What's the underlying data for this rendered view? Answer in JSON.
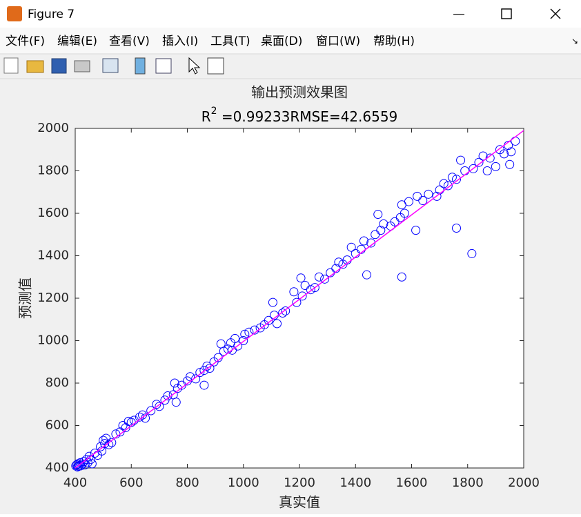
{
  "window": {
    "title": "Figure 7",
    "menu": [
      "文件(F)",
      "编辑(E)",
      "查看(V)",
      "插入(I)",
      "工具(T)",
      "桌面(D)",
      "窗口(W)",
      "帮助(H)"
    ]
  },
  "chart_data": {
    "type": "scatter",
    "title": "输出预测效果图",
    "subtitle": {
      "base": "R",
      "superscript": "2",
      "text": " =0.99233RMSE=42.6559"
    },
    "x_label": "真实值",
    "y_label": "预测值",
    "xlim": [
      400,
      2000
    ],
    "ylim": [
      400,
      2000
    ],
    "xticks": [
      400,
      600,
      800,
      1000,
      1200,
      1400,
      1600,
      1800,
      2000
    ],
    "yticks": [
      400,
      600,
      800,
      1000,
      1200,
      1400,
      1600,
      1800,
      2000
    ],
    "grid": false,
    "series": [
      {
        "type": "scatter",
        "color": "#0000ff",
        "x": [
          402,
          405,
          408,
          410,
          412,
          415,
          418,
          420,
          425,
          430,
          435,
          440,
          445,
          450,
          455,
          460,
          470,
          480,
          490,
          495,
          500,
          505,
          510,
          520,
          530,
          545,
          560,
          570,
          580,
          590,
          600,
          610,
          630,
          640,
          650,
          670,
          690,
          700,
          720,
          730,
          750,
          755,
          765,
          780,
          800,
          810,
          830,
          845,
          860,
          870,
          880,
          895,
          910,
          920,
          930,
          945,
          955,
          960,
          970,
          980,
          1000,
          1005,
          1020,
          1040,
          1060,
          1075,
          1090,
          1110,
          1120,
          1140,
          1150,
          1180,
          1190,
          1210,
          1220,
          1240,
          1255,
          1270,
          1290,
          1310,
          1330,
          1340,
          1355,
          1370,
          1385,
          1400,
          1420,
          1430,
          1455,
          1470,
          1490,
          1500,
          1525,
          1540,
          1560,
          1565,
          1575,
          1590,
          1620,
          1640,
          1660,
          1690,
          1700,
          1715,
          1730,
          1745,
          1760,
          1790,
          1820,
          1840,
          1855,
          1870,
          1880,
          1900,
          1915,
          1930,
          1945,
          1955,
          1970,
          1440,
          1565,
          1615,
          1760,
          1815,
          1480,
          1105,
          1205,
          1775,
          860,
          760,
          1950
        ],
        "values": [
          410,
          415,
          405,
          420,
          408,
          412,
          425,
          410,
          418,
          430,
          415,
          440,
          425,
          455,
          440,
          420,
          470,
          460,
          500,
          480,
          530,
          515,
          540,
          510,
          520,
          560,
          570,
          600,
          590,
          620,
          615,
          625,
          640,
          650,
          635,
          670,
          700,
          690,
          720,
          740,
          745,
          800,
          775,
          790,
          810,
          830,
          820,
          850,
          860,
          880,
          870,
          900,
          920,
          985,
          950,
          960,
          990,
          955,
          1010,
          975,
          1000,
          1030,
          1040,
          1050,
          1060,
          1075,
          1095,
          1120,
          1080,
          1130,
          1140,
          1230,
          1180,
          1210,
          1260,
          1240,
          1250,
          1300,
          1290,
          1320,
          1340,
          1370,
          1360,
          1380,
          1440,
          1410,
          1430,
          1470,
          1460,
          1500,
          1520,
          1550,
          1540,
          1560,
          1580,
          1640,
          1600,
          1655,
          1680,
          1660,
          1690,
          1680,
          1710,
          1740,
          1730,
          1770,
          1760,
          1800,
          1810,
          1840,
          1870,
          1800,
          1860,
          1820,
          1900,
          1880,
          1920,
          1890,
          1940,
          1310,
          1300,
          1520,
          1530,
          1410,
          1595,
          1180,
          1295,
          1850,
          790,
          710,
          1830
        ]
      },
      {
        "type": "line",
        "color": "#ff00ff",
        "x": [
          400,
          2000
        ],
        "values": [
          400,
          1990
        ]
      }
    ]
  }
}
